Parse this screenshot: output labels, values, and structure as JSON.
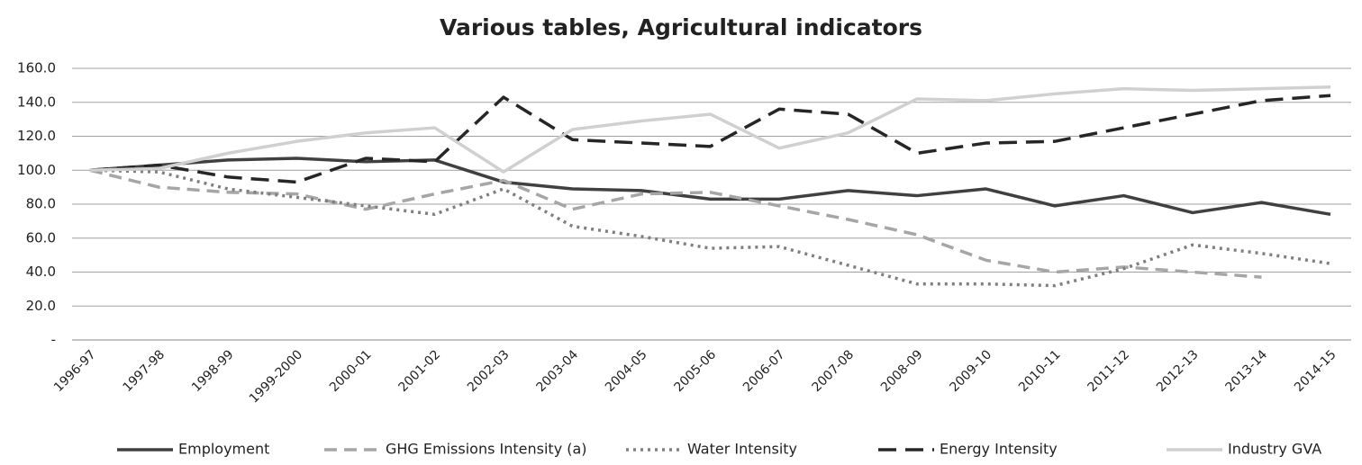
{
  "chart_data": {
    "type": "line",
    "title": "Various tables, Agricultural indicators",
    "categories": [
      "1996-97",
      "1997-98",
      "1998-99",
      "1999-2000",
      "2000-01",
      "2001-02",
      "2002-03",
      "2003-04",
      "2004-05",
      "2005-06",
      "2006-07",
      "2007-08",
      "2008-09",
      "2009-10",
      "2010-11",
      "2011-12",
      "2012-13",
      "2013-14",
      "2014-15"
    ],
    "series": [
      {
        "name": "Employment",
        "color": "#404040",
        "dash": "solid",
        "values": [
          100,
          103,
          106,
          107,
          105,
          106,
          93,
          89,
          88,
          83,
          83,
          88,
          85,
          89,
          79,
          85,
          75,
          81,
          74
        ]
      },
      {
        "name": "GHG Emissions Intensity (a)",
        "color": "#a6a6a6",
        "dash": "dashed",
        "values": [
          100,
          90,
          87,
          86,
          77,
          86,
          94,
          77,
          86,
          87,
          79,
          71,
          62,
          47,
          40,
          43,
          40,
          37,
          null
        ]
      },
      {
        "name": "Water Intensity",
        "color": "#7f7f7f",
        "dash": "dotted",
        "values": [
          100,
          99,
          89,
          84,
          79,
          74,
          89,
          67,
          61,
          54,
          55,
          44,
          33,
          33,
          32,
          42,
          56,
          51,
          45
        ]
      },
      {
        "name": "Energy Intensity",
        "color": "#262626",
        "dash": "longdash",
        "values": [
          100,
          103,
          96,
          93,
          107,
          105,
          143,
          118,
          116,
          114,
          136,
          133,
          110,
          116,
          117,
          125,
          133,
          141,
          144
        ]
      },
      {
        "name": "Industry GVA",
        "color": "#d0d0d0",
        "dash": "solid",
        "values": [
          100,
          101,
          110,
          117,
          122,
          125,
          99,
          124,
          129,
          133,
          113,
          122,
          142,
          141,
          145,
          148,
          147,
          148,
          149
        ]
      }
    ],
    "ylim": [
      0,
      160
    ],
    "yticks": [
      {
        "value": 0,
        "label": "-"
      },
      {
        "value": 20,
        "label": "20.0"
      },
      {
        "value": 40,
        "label": "40.0"
      },
      {
        "value": 60,
        "label": "60.0"
      },
      {
        "value": 80,
        "label": "80.0"
      },
      {
        "value": 100,
        "label": "100.0"
      },
      {
        "value": 120,
        "label": "120.0"
      },
      {
        "value": 140,
        "label": "140.0"
      },
      {
        "value": 160,
        "label": "160.0"
      }
    ],
    "grid": true,
    "legend": "bottom"
  }
}
